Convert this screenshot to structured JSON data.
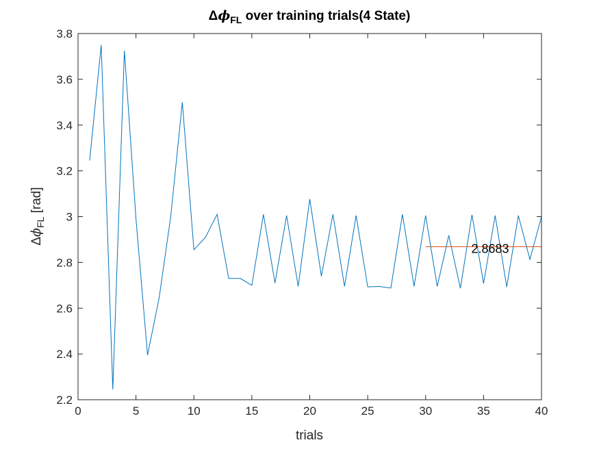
{
  "chart_data": {
    "type": "line",
    "title": {
      "prefix": "Δ",
      "phi": "ϕ",
      "subscript": "FL",
      "suffix": " over training trials(4 State)"
    },
    "xlabel": "trials",
    "ylabel": {
      "prefix": "Δ",
      "phi": "ϕ",
      "subscript": "FL",
      "suffix": " [rad]"
    },
    "xlim": [
      0,
      40
    ],
    "ylim": [
      2.2,
      3.8
    ],
    "xticks": [
      0,
      5,
      10,
      15,
      20,
      25,
      30,
      35,
      40
    ],
    "xtick_labels": [
      "0",
      "5",
      "10",
      "15",
      "20",
      "25",
      "30",
      "35",
      "40"
    ],
    "yticks": [
      2.2,
      2.4,
      2.6,
      2.8,
      3.0,
      3.2,
      3.4,
      3.6,
      3.8
    ],
    "ytick_labels": [
      "2.2",
      "2.4",
      "2.6",
      "2.8",
      "3",
      "3.2",
      "3.4",
      "3.6",
      "3.8"
    ],
    "grid": false,
    "colors": {
      "series": "#0072BD",
      "mean_line": "#D95319",
      "axis": "#262626"
    },
    "series": [
      {
        "x": [
          1,
          2,
          3,
          4,
          5,
          6,
          7,
          8,
          9,
          10,
          11,
          12,
          13,
          14,
          15,
          16,
          17,
          18,
          19,
          20,
          21,
          22,
          23,
          24,
          25,
          26,
          27,
          28,
          29,
          30,
          31,
          32,
          33,
          34,
          35,
          36,
          37,
          38,
          39,
          40
        ],
        "values": [
          3.245,
          3.75,
          2.245,
          3.725,
          2.99,
          2.395,
          2.645,
          3.0,
          3.5,
          2.855,
          2.91,
          3.01,
          2.73,
          2.73,
          2.7,
          3.01,
          2.71,
          3.005,
          2.695,
          3.077,
          2.74,
          3.01,
          2.695,
          3.005,
          2.693,
          2.695,
          2.688,
          3.01,
          2.695,
          3.005,
          2.695,
          2.918,
          2.687,
          3.008,
          2.708,
          3.005,
          2.693,
          3.005,
          2.813,
          3.0
        ]
      }
    ],
    "mean_line": {
      "x": [
        30,
        40
      ],
      "y": 2.8683
    },
    "annotation": {
      "text": "2.8683",
      "x": 33,
      "y": 2.8683
    }
  }
}
